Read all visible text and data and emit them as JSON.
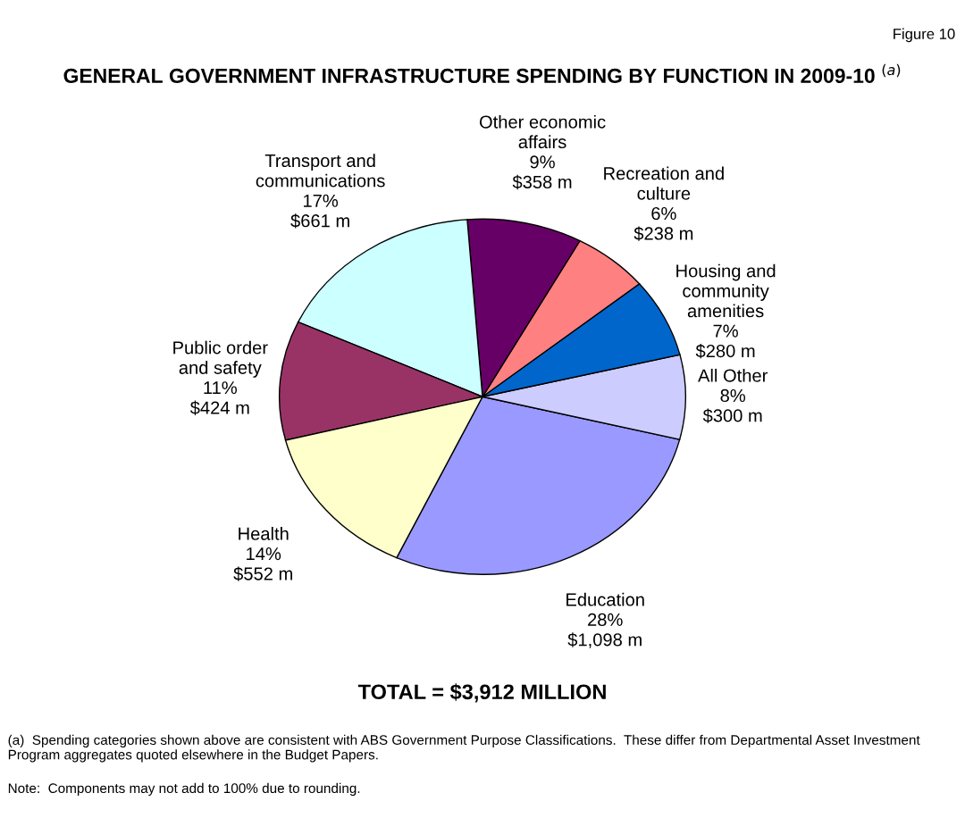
{
  "chart_data": {
    "type": "pie",
    "title": "GENERAL GOVERNMENT INFRASTRUCTURE SPENDING BY FUNCTION IN 2009-10 $^{(a)}$",
    "categories": [
      "Education",
      "All Other",
      "Housing and community amenities",
      "Recreation and culture",
      "Other economic affairs",
      "Transport and communications",
      "Public order and safety",
      "Health"
    ],
    "values": [
      1098,
      300,
      280,
      238,
      358,
      661,
      424,
      552
    ],
    "value_labels": [
      "28%\n$1,098 m",
      "8%\n$300 m",
      "7%\n$280 m",
      "6%\n$238 m",
      "9%\n$358 m",
      "17%\n$661 m",
      "11%\n$424 m",
      "14%\n$552 m"
    ],
    "colors": [
      "#9999ff",
      "#ccccff",
      "#0066cc",
      "#ff8080",
      "#660066",
      "#ccffff",
      "#993366",
      "#ffffcc"
    ],
    "annotations": [
      "Figure 10",
      "TOTAL = $3,912 MILLION",
      "(a)  Spending categories shown above are consistent with ABS Government Purpose Classifications.  These differ from Departmental Asset Investment Program aggregates quoted elsewhere in the Budget Papers.",
      "Note:  Components may not add to 100% due to rounding."
    ]
  }
}
